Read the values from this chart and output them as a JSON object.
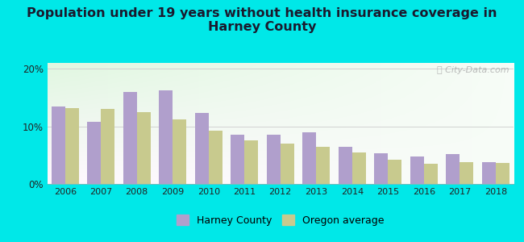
{
  "title": "Population under 19 years without health insurance coverage in\nHarney County",
  "years": [
    2006,
    2007,
    2008,
    2009,
    2010,
    2011,
    2012,
    2013,
    2014,
    2015,
    2016,
    2017,
    2018
  ],
  "harney": [
    13.5,
    10.8,
    16.0,
    16.2,
    12.3,
    8.6,
    8.5,
    8.9,
    6.5,
    5.3,
    4.7,
    5.2,
    3.8
  ],
  "oregon": [
    13.1,
    13.0,
    12.5,
    11.2,
    9.2,
    7.6,
    7.0,
    6.4,
    5.4,
    4.2,
    3.5,
    3.8,
    3.6
  ],
  "harney_color": "#b09fcc",
  "oregon_color": "#c8ca8e",
  "bg_outer": "#00e8e8",
  "ylim": [
    0,
    21
  ],
  "yticks": [
    0,
    10,
    20
  ],
  "ytick_labels": [
    "0%",
    "10%",
    "20%"
  ],
  "legend_harney": "Harney County",
  "legend_oregon": "Oregon average",
  "title_fontsize": 11.5,
  "watermark": "City-Data.com"
}
